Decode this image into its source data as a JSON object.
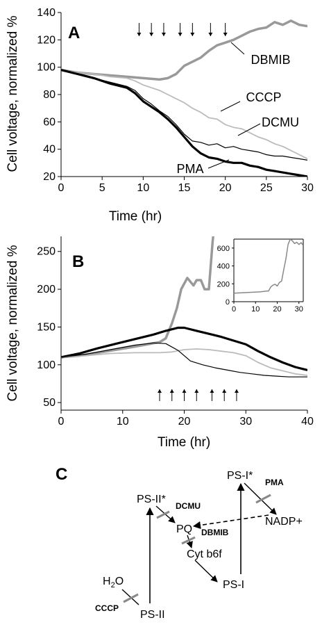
{
  "chart_data": [
    {
      "type": "line",
      "panel_label": "A",
      "xlabel": "Time (hr)",
      "ylabel": "Cell voltage, normalized %",
      "xlim": [
        0,
        30
      ],
      "ylim": [
        20,
        140
      ],
      "x_ticks": [
        0,
        5,
        10,
        15,
        20,
        25,
        30
      ],
      "y_ticks": [
        20,
        40,
        60,
        80,
        100,
        120,
        140
      ],
      "grid": false,
      "treatment_arrows_x": [
        9.5,
        11,
        12.5,
        14.5,
        16,
        18.2,
        20
      ],
      "series": [
        {
          "name": "DBMIB",
          "color": "#999999",
          "width": 3.5,
          "points": [
            [
              0,
              98
            ],
            [
              2,
              96
            ],
            [
              4,
              95
            ],
            [
              6,
              94
            ],
            [
              8,
              93
            ],
            [
              10,
              92
            ],
            [
              12,
              91
            ],
            [
              13,
              92
            ],
            [
              14,
              95
            ],
            [
              15,
              101
            ],
            [
              16,
              104
            ],
            [
              17,
              107
            ],
            [
              18,
              112
            ],
            [
              19,
              116
            ],
            [
              20,
              118
            ],
            [
              21,
              120
            ],
            [
              22,
              123
            ],
            [
              23,
              126
            ],
            [
              24,
              128
            ],
            [
              25,
              129
            ],
            [
              26,
              133
            ],
            [
              27,
              131
            ],
            [
              28,
              134
            ],
            [
              29,
              131
            ],
            [
              30,
              130
            ]
          ]
        },
        {
          "name": "CCCP",
          "color": "#bbbbbb",
          "width": 1.8,
          "points": [
            [
              0,
              98
            ],
            [
              2,
              96
            ],
            [
              4,
              95
            ],
            [
              6,
              93
            ],
            [
              8,
              92
            ],
            [
              9,
              90
            ],
            [
              10,
              87
            ],
            [
              12,
              83
            ],
            [
              13,
              80
            ],
            [
              14,
              77
            ],
            [
              15,
              74
            ],
            [
              16,
              70
            ],
            [
              17,
              67
            ],
            [
              18,
              63
            ],
            [
              19,
              62
            ],
            [
              20,
              58
            ],
            [
              21,
              56
            ],
            [
              22,
              55
            ],
            [
              23,
              52
            ],
            [
              24,
              49
            ],
            [
              25,
              47
            ],
            [
              26,
              44
            ],
            [
              27,
              42
            ],
            [
              28,
              39
            ],
            [
              29,
              36
            ],
            [
              30,
              33
            ]
          ]
        },
        {
          "name": "DCMU",
          "color": "#000000",
          "width": 1.2,
          "points": [
            [
              0,
              98
            ],
            [
              2,
              95
            ],
            [
              4,
              92
            ],
            [
              6,
              89
            ],
            [
              8,
              86
            ],
            [
              9,
              83
            ],
            [
              10,
              77
            ],
            [
              11,
              73
            ],
            [
              12,
              68
            ],
            [
              13,
              64
            ],
            [
              14,
              58
            ],
            [
              15,
              51
            ],
            [
              16,
              46
            ],
            [
              17,
              45
            ],
            [
              18,
              43
            ],
            [
              19,
              44
            ],
            [
              20,
              41
            ],
            [
              21,
              42
            ],
            [
              22,
              40
            ],
            [
              23,
              39
            ],
            [
              24,
              38
            ],
            [
              25,
              36
            ],
            [
              26,
              35
            ],
            [
              27,
              35
            ],
            [
              28,
              34
            ],
            [
              29,
              33
            ],
            [
              30,
              32
            ]
          ]
        },
        {
          "name": "PMA",
          "color": "#000000",
          "width": 3.2,
          "points": [
            [
              0,
              98
            ],
            [
              2,
              95
            ],
            [
              4,
              92
            ],
            [
              6,
              88
            ],
            [
              8,
              85
            ],
            [
              9,
              81
            ],
            [
              10,
              75
            ],
            [
              11,
              71
            ],
            [
              12,
              67
            ],
            [
              13,
              62
            ],
            [
              14,
              56
            ],
            [
              15,
              49
            ],
            [
              16,
              42
            ],
            [
              17,
              37
            ],
            [
              18,
              34
            ],
            [
              19,
              33
            ],
            [
              20,
              31
            ],
            [
              21,
              30
            ],
            [
              22,
              30
            ],
            [
              23,
              28
            ],
            [
              24,
              27
            ],
            [
              25,
              25
            ],
            [
              26,
              24
            ],
            [
              27,
              23
            ],
            [
              28,
              22
            ],
            [
              29,
              21
            ],
            [
              30,
              20
            ]
          ]
        }
      ]
    },
    {
      "type": "line",
      "panel_label": "B",
      "xlabel": "Time (hr)",
      "ylabel": "Cell voltage, normalized %",
      "xlim": [
        0,
        40
      ],
      "ylim": [
        40,
        270
      ],
      "x_ticks": [
        0,
        10,
        20,
        30,
        40
      ],
      "y_ticks": [
        50,
        100,
        150,
        200,
        250
      ],
      "grid": false,
      "treatment_arrows_x": [
        16,
        18,
        20,
        22,
        24.5,
        26.5,
        28.5
      ],
      "series": [
        {
          "color": "#999999",
          "width": 3.5,
          "points": [
            [
              0,
              110
            ],
            [
              3,
              112
            ],
            [
              6,
              116
            ],
            [
              9,
              120
            ],
            [
              12,
              124
            ],
            [
              14,
              127
            ],
            [
              16,
              130
            ],
            [
              17,
              135
            ],
            [
              18,
              155
            ],
            [
              18.8,
              175
            ],
            [
              19.5,
              200
            ],
            [
              20.5,
              215
            ],
            [
              21.5,
              205
            ],
            [
              22,
              212
            ],
            [
              22.7,
              212
            ],
            [
              23.3,
              200
            ],
            [
              24,
              200
            ],
            [
              24.6,
              262
            ],
            [
              24.7,
              270
            ]
          ]
        },
        {
          "color": "#000000",
          "width": 3.2,
          "points": [
            [
              0,
              110
            ],
            [
              3,
              115
            ],
            [
              6,
              122
            ],
            [
              9,
              128
            ],
            [
              12,
              134
            ],
            [
              15,
              140
            ],
            [
              17,
              145
            ],
            [
              19,
              149
            ],
            [
              20,
              149
            ],
            [
              22,
              145
            ],
            [
              24,
              141
            ],
            [
              26,
              137
            ],
            [
              28,
              132
            ],
            [
              30,
              127
            ],
            [
              32,
              118
            ],
            [
              34,
              110
            ],
            [
              36,
              103
            ],
            [
              38,
              97
            ],
            [
              40,
              93
            ]
          ]
        },
        {
          "color": "#bbbbbb",
          "width": 1.8,
          "points": [
            [
              0,
              110
            ],
            [
              4,
              112
            ],
            [
              8,
              115
            ],
            [
              12,
              116
            ],
            [
              16,
              116
            ],
            [
              18,
              117
            ],
            [
              20,
              120
            ],
            [
              22,
              121
            ],
            [
              24,
              120
            ],
            [
              26,
              118
            ],
            [
              28,
              116
            ],
            [
              30,
              112
            ],
            [
              32,
              103
            ],
            [
              34,
              96
            ],
            [
              36,
              92
            ],
            [
              38,
              88
            ],
            [
              40,
              86
            ]
          ]
        },
        {
          "color": "#000000",
          "width": 1.2,
          "points": [
            [
              0,
              110
            ],
            [
              4,
              114
            ],
            [
              8,
              120
            ],
            [
              12,
              126
            ],
            [
              15,
              129
            ],
            [
              17,
              128
            ],
            [
              19,
              119
            ],
            [
              21,
              105
            ],
            [
              23,
              100
            ],
            [
              25,
              96
            ],
            [
              27,
              93
            ],
            [
              29,
              90
            ],
            [
              31,
              88
            ],
            [
              33,
              86
            ],
            [
              35,
              85
            ],
            [
              37,
              84
            ],
            [
              40,
              84
            ]
          ]
        }
      ],
      "inset": {
        "xlim": [
          0,
          32
        ],
        "ylim": [
          0,
          700
        ],
        "x_ticks": [
          0,
          10,
          20,
          30
        ],
        "y_ticks": [
          0,
          200,
          400,
          600
        ],
        "series": [
          {
            "color": "#888888",
            "points": [
              [
                0,
                95
              ],
              [
                4,
                100
              ],
              [
                8,
                105
              ],
              [
                12,
                110
              ],
              [
                15,
                118
              ],
              [
                16,
                120
              ],
              [
                17,
                165
              ],
              [
                18,
                185
              ],
              [
                19,
                195
              ],
              [
                20,
                175
              ],
              [
                21,
                215
              ],
              [
                22,
                230
              ],
              [
                23,
                360
              ],
              [
                24,
                480
              ],
              [
                25,
                640
              ],
              [
                26,
                700
              ],
              [
                27,
                680
              ],
              [
                28,
                650
              ],
              [
                29,
                665
              ],
              [
                30,
                640
              ],
              [
                31,
                660
              ],
              [
                32,
                630
              ]
            ]
          }
        ]
      }
    }
  ],
  "panel_c": {
    "label": "C",
    "nodes": {
      "ps1_star": "PS-I*",
      "pma": "PMA",
      "ps2_star": "PS-II*",
      "dcmu": "DCMU",
      "nadp": "NADP+",
      "pq": "PQ",
      "dbmib": "DBMIB",
      "cytb6f": "Cyt b6f",
      "h2o_h": "H",
      "h2o_sub": "2",
      "h2o_o": "O",
      "ps1": "PS-I",
      "cccp": "CCCP",
      "ps2": "PS-II"
    }
  }
}
